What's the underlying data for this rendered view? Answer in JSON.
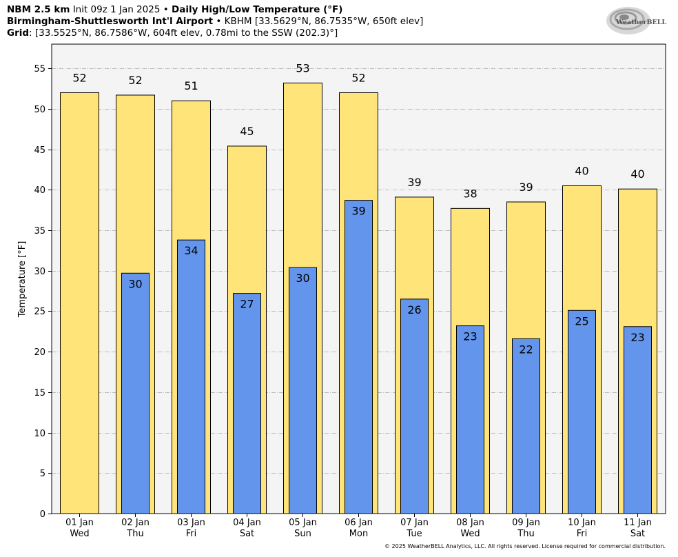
{
  "header": {
    "line1": {
      "model": "NBM 2.5 km",
      "init": "Init 09z 1 Jan 2025",
      "sep": " • ",
      "product": "Daily High/Low Temperature (°F)"
    },
    "line2": {
      "station": "Birmingham-Shuttlesworth Int'l Airport",
      "sep": " • ",
      "details": "KBHM [33.5629°N, 86.7535°W, 650ft elev]"
    },
    "line3": {
      "label": "Grid",
      "details": ": [33.5525°N, 86.7586°W, 604ft elev, 0.78mi to the SSW (202.3)°]"
    }
  },
  "logo": {
    "text": "WeatherBELL",
    "icon": "weatherbell-swirl-logo"
  },
  "copyright": "© 2025 WeatherBELL Analytics, LLC. All rights reserved. License required for commercial distribution.",
  "colors": {
    "high": "#FFE47A",
    "low": "#6495ED",
    "plot_bg": "#F4F4F4",
    "grid": "#BBBBBB"
  },
  "chart_data": {
    "type": "bar",
    "ylabel": "Temperature [°F]",
    "ylim": [
      0,
      58
    ],
    "yticks": [
      0,
      5,
      10,
      15,
      20,
      25,
      30,
      35,
      40,
      45,
      50,
      55
    ],
    "grid": true,
    "categories": [
      "01 Jan",
      "02 Jan",
      "03 Jan",
      "04 Jan",
      "05 Jan",
      "06 Jan",
      "07 Jan",
      "08 Jan",
      "09 Jan",
      "10 Jan",
      "11 Jan"
    ],
    "weekdays": [
      "Wed",
      "Thu",
      "Fri",
      "Sat",
      "Sun",
      "Mon",
      "Tue",
      "Wed",
      "Thu",
      "Fri",
      "Sat"
    ],
    "series": [
      {
        "key": "high",
        "values": [
          52.0,
          51.7,
          51.0,
          45.4,
          53.2,
          52.0,
          39.1,
          37.7,
          38.5,
          40.5,
          40.1
        ],
        "labels": [
          "52",
          "52",
          "51",
          "45",
          "53",
          "52",
          "39",
          "38",
          "39",
          "40",
          "40"
        ]
      },
      {
        "key": "low",
        "values": [
          null,
          29.7,
          33.8,
          27.2,
          30.4,
          38.7,
          26.5,
          23.2,
          21.6,
          25.1,
          23.1
        ],
        "labels": [
          "",
          "30",
          "34",
          "27",
          "30",
          "39",
          "26",
          "23",
          "22",
          "25",
          "23"
        ]
      }
    ]
  }
}
